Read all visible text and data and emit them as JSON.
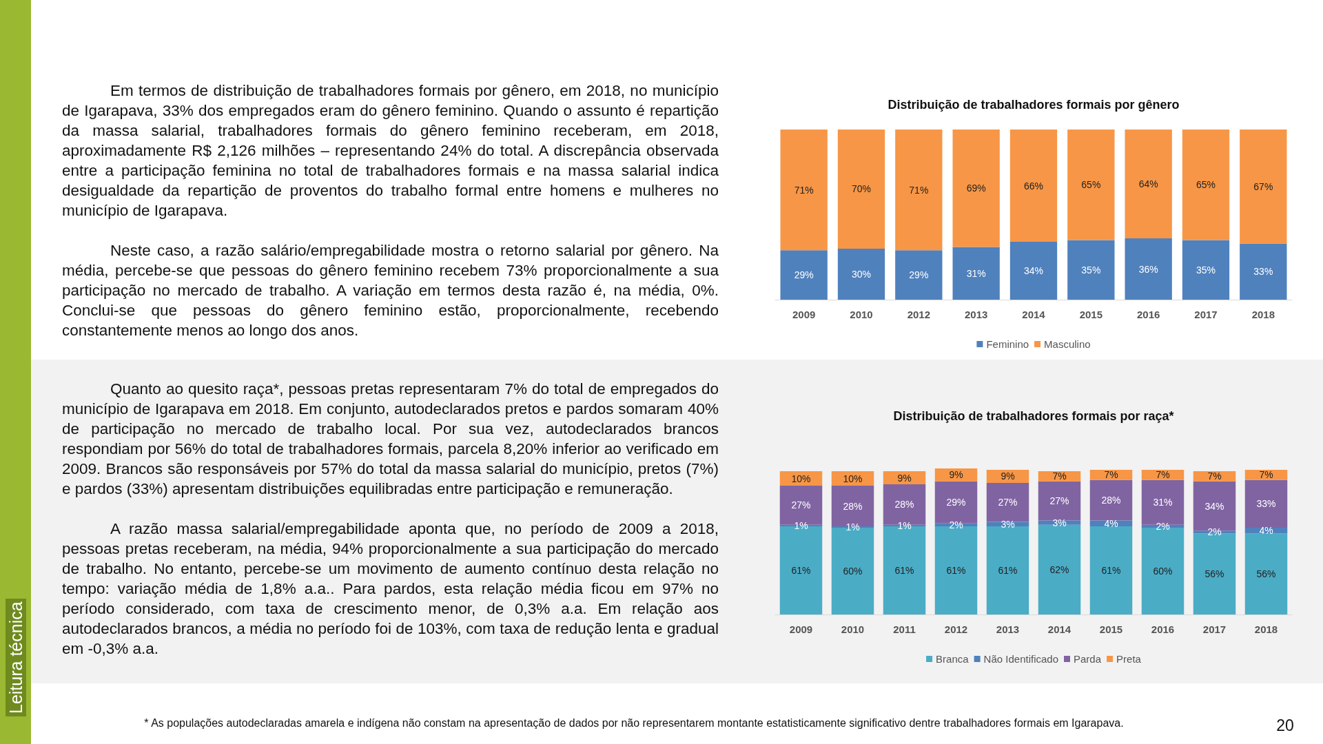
{
  "chart_data": [
    {
      "type": "other",
      "annotations": [
        "Em termos de distribuição de trabalhadores formais por gênero, em 2018, no município de Igarapava, 33% dos empregados eram do gênero feminino. Quando o assunto é repartição da massa salarial, trabalhadores formais do gênero feminino receberam, em 2018, aproximadamente R$ 2,126 milhões – representando 24% do total. A discrepância observada entre a participação feminina no total de trabalhadores formais e na massa salarial indica desigualdade da repartição de proventos do trabalho formal entre homens e mulheres no município de Igarapava.",
        "Neste caso, a razão salário/empregabilidade mostra o retorno salarial por gênero. Na média, percebe-se que pessoas do gênero feminino recebem 73% proporcionalmente a sua participação no mercado de trabalho. A variação em termos desta razão é, na média, 0%. Conclui-se que pessoas do gênero feminino estão, proporcionalmente, recebendo constantemente menos ao longo dos anos."
      ]
    },
    {
      "type": "bar",
      "title": "Distribuição de trabalhadores formais por gênero",
      "stacked": true,
      "legend": "bottom",
      "categories": [
        "2009",
        "2010",
        "2012",
        "2013",
        "2014",
        "2015",
        "2016",
        "2017",
        "2018"
      ],
      "series": [
        {
          "name": "Feminino",
          "color": "#4f81bd",
          "values": [
            29,
            30,
            29,
            31,
            34,
            35,
            36,
            35,
            33
          ],
          "value_labels": [
            "29%",
            "30%",
            "29%",
            "31%",
            "34%",
            "35%",
            "36%",
            "35%",
            "33%"
          ]
        },
        {
          "name": "Masculino",
          "color": "#f79646",
          "values": [
            71,
            70,
            71,
            69,
            66,
            65,
            64,
            65,
            67
          ],
          "value_labels": [
            "71%",
            "70%",
            "71%",
            "69%",
            "66%",
            "65%",
            "64%",
            "65%",
            "67%"
          ]
        }
      ]
    },
    {
      "type": "other",
      "annotations": [
        "Quanto ao quesito raça*, pessoas pretas representaram 7% do total de empregados do município de Igarapava em 2018. Em conjunto, autodeclarados pretos e pardos somaram 40% de participação no mercado de trabalho local. Por sua vez, autodeclarados brancos respondiam por 56% do total de trabalhadores formais, parcela 8,20% inferior ao verificado em 2009. Brancos são responsáveis por 57% do total da massa salarial do município, pretos (7%) e pardos (33%) apresentam distribuições equilibradas entre participação e remuneração.",
        "A razão massa salarial/empregabilidade aponta que, no período de 2009 a 2018, pessoas pretas receberam, na média, 94% proporcionalmente a sua participação do mercado de trabalho. No entanto, percebe-se um movimento de aumento contínuo desta relação no tempo: variação média de 1,8% a.a.. Para pardos, esta relação média ficou em 97% no período considerado, com taxa de crescimento menor, de 0,3% a.a. Em relação aos autodeclarados brancos, a média no período foi de 103%, com taxa de redução lenta e gradual em -0,3% a.a."
      ]
    },
    {
      "type": "bar",
      "title": "Distribuição de trabalhadores formais por raça*",
      "stacked": true,
      "legend": "bottom",
      "categories": [
        "2009",
        "2010",
        "2011",
        "2012",
        "2013",
        "2014",
        "2015",
        "2016",
        "2017",
        "2018"
      ],
      "series": [
        {
          "name": "Branca",
          "color": "#4bacc6",
          "values": [
            61,
            60,
            61,
            61,
            61,
            62,
            61,
            60,
            56,
            56
          ],
          "value_labels": [
            "61%",
            "60%",
            "61%",
            "61%",
            "61%",
            "62%",
            "61%",
            "60%",
            "56%",
            "56%"
          ]
        },
        {
          "name": "Não Identificado",
          "color": "#4f81bd",
          "values": [
            1,
            1,
            1,
            2,
            3,
            3,
            4,
            2,
            2,
            4
          ],
          "value_labels": [
            "1%",
            "1%",
            "1%",
            "2%",
            "3%",
            "3%",
            "4%",
            "2%",
            "2%",
            "4%"
          ]
        },
        {
          "name": "Parda",
          "color": "#8064a2",
          "values": [
            27,
            28,
            28,
            29,
            27,
            27,
            28,
            31,
            34,
            33
          ],
          "value_labels": [
            "27%",
            "28%",
            "28%",
            "29%",
            "27%",
            "27%",
            "28%",
            "31%",
            "34%",
            "33%"
          ]
        },
        {
          "name": "Preta",
          "color": "#f79646",
          "values": [
            10,
            10,
            9,
            9,
            9,
            7,
            7,
            7,
            7,
            7
          ],
          "value_labels": [
            "10%",
            "10%",
            "9%",
            "9%",
            "9%",
            "7%",
            "7%",
            "7%",
            "7%",
            "7%"
          ]
        }
      ]
    },
    {
      "type": "other",
      "annotations": [
        "Leitura técnica",
        "* As populações autodeclaradas amarela e indígena não constam na apresentação de dados por não representarem montante estatisticamente significativo dentre trabalhadores formais em Igarapava.",
        "20"
      ]
    }
  ]
}
